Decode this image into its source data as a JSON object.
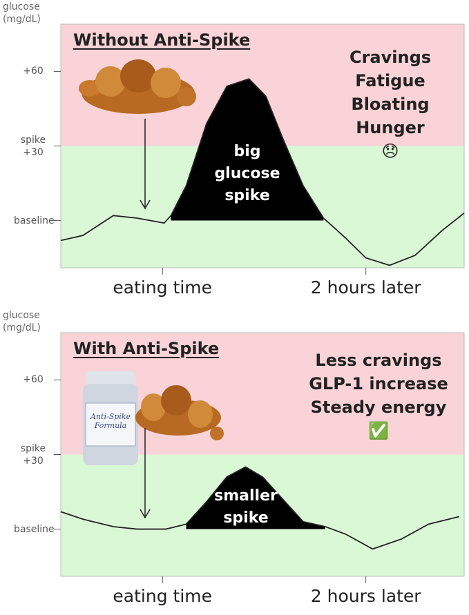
{
  "chart_data": [
    {
      "type": "line",
      "title": "Without Anti-Spike",
      "ylabel": "glucose (mg/dL)",
      "x": [
        -60,
        -47,
        -29,
        -15,
        1,
        5,
        14,
        26,
        38,
        51,
        61,
        71,
        83,
        95,
        108,
        120,
        134,
        149,
        165,
        178
      ],
      "values": [
        -8,
        -6,
        2,
        1,
        -1,
        2,
        14,
        39,
        54,
        57,
        50,
        33,
        14,
        1,
        -7,
        -15,
        -18,
        -14,
        -4,
        3
      ],
      "color": "#222222",
      "spike_color": "#000000",
      "spike_label": "big glucose spike",
      "effects": [
        "Cravings",
        "Fatigue",
        "Bloating",
        "Hunger",
        "😞"
      ],
      "zone_split": 30,
      "zone_colors": [
        "#daf7d6",
        "#f9d3d7"
      ],
      "xlim": [
        -60,
        178
      ],
      "ylim": [
        -19,
        79
      ],
      "xticks": [
        {
          "value": 0,
          "label": "eating time"
        },
        {
          "value": 120,
          "label": "2 hours later"
        }
      ],
      "yticks": [
        {
          "value": 0,
          "label": "baseline"
        },
        {
          "value": 30,
          "label": "spike +30"
        },
        {
          "value": 60,
          "label": "+60"
        }
      ]
    },
    {
      "type": "line",
      "title": "With Anti-Spike",
      "ylabel": "glucose (mg/dL)",
      "x": [
        -60,
        -47,
        -29,
        -15,
        2,
        14,
        26,
        38,
        49,
        59,
        71,
        83,
        96,
        108,
        124,
        141,
        157,
        175
      ],
      "values": [
        7,
        4,
        1,
        0,
        0,
        2,
        11,
        21,
        25,
        21,
        12,
        3,
        1,
        -2,
        -8,
        -4,
        2,
        5
      ],
      "color": "#222222",
      "spike_color": "#000000",
      "spike_label": "smaller spike",
      "effects": [
        "Less cravings",
        "GLP-1 increase",
        "Steady energy",
        "✅"
      ],
      "product_label": "Anti-Spike Formula",
      "zone_split": 30,
      "zone_colors": [
        "#daf7d6",
        "#f9d3d7"
      ],
      "xlim": [
        -60,
        178
      ],
      "ylim": [
        -19,
        79
      ],
      "xticks": [
        {
          "value": 0,
          "label": "eating time"
        },
        {
          "value": 120,
          "label": "2 hours later"
        }
      ],
      "yticks": [
        {
          "value": 0,
          "label": "baseline"
        },
        {
          "value": 30,
          "label": "spike +30"
        },
        {
          "value": 60,
          "label": "+60"
        }
      ]
    }
  ]
}
